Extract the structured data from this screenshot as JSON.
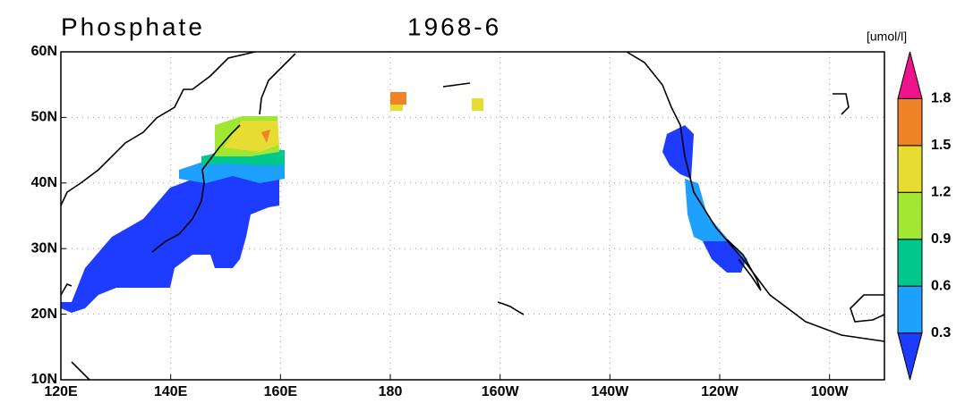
{
  "title": "Phosphate",
  "date": "1968-6",
  "units": "[umol/l]",
  "map": {
    "lonlim": [
      120,
      270
    ],
    "latlim": [
      10,
      60
    ],
    "grid": true,
    "lonticks": [
      {
        "value": 120,
        "label": "120E"
      },
      {
        "value": 140,
        "label": "140E"
      },
      {
        "value": 160,
        "label": "160E"
      },
      {
        "value": 180,
        "label": "180"
      },
      {
        "value": 200,
        "label": "160W"
      },
      {
        "value": 220,
        "label": "140W"
      },
      {
        "value": 240,
        "label": "120W"
      },
      {
        "value": 260,
        "label": "100W"
      }
    ],
    "latticks": [
      {
        "value": 10,
        "label": "10N"
      },
      {
        "value": 20,
        "label": "20N"
      },
      {
        "value": 30,
        "label": "30N"
      },
      {
        "value": 40,
        "label": "40N"
      },
      {
        "value": 50,
        "label": "50N"
      },
      {
        "value": 60,
        "label": "60N"
      }
    ]
  },
  "colorbar": {
    "levels": [
      0.3,
      0.6,
      0.9,
      1.2,
      1.5,
      1.8
    ],
    "colors": [
      "#1e3cff",
      "#1ea0ff",
      "#00c88c",
      "#a0e632",
      "#e6dc32",
      "#f08228",
      "#f0148c"
    ]
  }
}
